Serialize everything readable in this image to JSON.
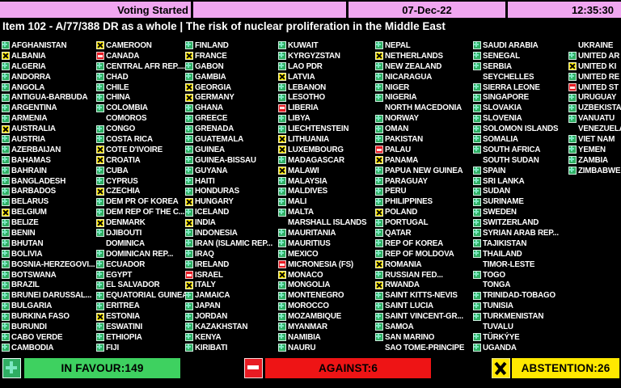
{
  "header": {
    "status": "Voting Started",
    "date": "07-Dec-22",
    "time": "12:35:30"
  },
  "title": "Item 102 - A/77/388 DR as a whole  | The risk of nuclear proliferation in the Middle East",
  "legend": {
    "favour": "IN FAVOUR:149",
    "against": "AGAINST:6",
    "abstention": "ABSTENTION:26"
  },
  "counts": {
    "in_favour": 149,
    "against": 6,
    "abstention": 26
  },
  "colors": {
    "favour_green": "#3ed160",
    "against_red": "#ee1415",
    "abstain_yellow": "#ffe800",
    "header_pink": "#f0a6f0"
  },
  "vote_symbols": {
    "+": "in-favour",
    "-": "against",
    "x": "abstain",
    "": "not-voting"
  },
  "columns": [
    [
      [
        "AFGHANISTAN",
        "+"
      ],
      [
        "ALBANIA",
        "x"
      ],
      [
        "ALGERIA",
        "+"
      ],
      [
        "ANDORRA",
        "+"
      ],
      [
        "ANGOLA",
        "+"
      ],
      [
        "ANTIGUA-BARBUDA",
        "+"
      ],
      [
        "ARGENTINA",
        "+"
      ],
      [
        "ARMENIA",
        "+"
      ],
      [
        "AUSTRALIA",
        "x"
      ],
      [
        "AUSTRIA",
        "+"
      ],
      [
        "AZERBAIJAN",
        "+"
      ],
      [
        "BAHAMAS",
        "+"
      ],
      [
        "BAHRAIN",
        "+"
      ],
      [
        "BANGLADESH",
        "+"
      ],
      [
        "BARBADOS",
        "+"
      ],
      [
        "BELARUS",
        "+"
      ],
      [
        "BELGIUM",
        "x"
      ],
      [
        "BELIZE",
        "+"
      ],
      [
        "BENIN",
        "+"
      ],
      [
        "BHUTAN",
        "+"
      ],
      [
        "BOLIVIA",
        "+"
      ],
      [
        "BOSNIA-HERZEGOVI...",
        "+"
      ],
      [
        "BOTSWANA",
        "+"
      ],
      [
        "BRAZIL",
        "+"
      ],
      [
        "BRUNEI DARUSSAL...",
        "+"
      ],
      [
        "BULGARIA",
        "+"
      ],
      [
        "BURKINA FASO",
        "+"
      ],
      [
        "BURUNDI",
        "+"
      ],
      [
        "CABO VERDE",
        "+"
      ],
      [
        "CAMBODIA",
        "+"
      ]
    ],
    [
      [
        "CAMEROON",
        "x"
      ],
      [
        "CANADA",
        "-"
      ],
      [
        "CENTRAL AFR REP....",
        "+"
      ],
      [
        "CHAD",
        "+"
      ],
      [
        "CHILE",
        "+"
      ],
      [
        "CHINA",
        "+"
      ],
      [
        "COLOMBIA",
        "+"
      ],
      [
        "COMOROS",
        ""
      ],
      [
        "CONGO",
        "+"
      ],
      [
        "COSTA RICA",
        "+"
      ],
      [
        "COTE D'IVOIRE",
        "x"
      ],
      [
        "CROATIA",
        "x"
      ],
      [
        "CUBA",
        "+"
      ],
      [
        "CYPRUS",
        "+"
      ],
      [
        "CZECHIA",
        "x"
      ],
      [
        "DEM PR OF KOREA",
        "+"
      ],
      [
        "DEM REP OF THE C...",
        "+"
      ],
      [
        "DENMARK",
        "x"
      ],
      [
        "DJIBOUTI",
        "+"
      ],
      [
        "DOMINICA",
        ""
      ],
      [
        "DOMINICAN REP...",
        "+"
      ],
      [
        "ECUADOR",
        "+"
      ],
      [
        "EGYPT",
        "+"
      ],
      [
        "EL SALVADOR",
        "+"
      ],
      [
        "EQUATORIAL GUINEA",
        "+"
      ],
      [
        "ERITREA",
        "+"
      ],
      [
        "ESTONIA",
        "x"
      ],
      [
        "ESWATINI",
        "+"
      ],
      [
        "ETHIOPIA",
        "+"
      ],
      [
        "FIJI",
        "+"
      ]
    ],
    [
      [
        "FINLAND",
        "+"
      ],
      [
        "FRANCE",
        "x"
      ],
      [
        "GABON",
        "+"
      ],
      [
        "GAMBIA",
        "+"
      ],
      [
        "GEORGIA",
        "x"
      ],
      [
        "GERMANY",
        "x"
      ],
      [
        "GHANA",
        "+"
      ],
      [
        "GREECE",
        "+"
      ],
      [
        "GRENADA",
        "+"
      ],
      [
        "GUATEMALA",
        "+"
      ],
      [
        "GUINEA",
        "+"
      ],
      [
        "GUINEA-BISSAU",
        "+"
      ],
      [
        "GUYANA",
        "+"
      ],
      [
        "HAITI",
        "+"
      ],
      [
        "HONDURAS",
        "+"
      ],
      [
        "HUNGARY",
        "x"
      ],
      [
        "ICELAND",
        "+"
      ],
      [
        "INDIA",
        "x"
      ],
      [
        "INDONESIA",
        "+"
      ],
      [
        "IRAN (ISLAMIC REP...",
        "+"
      ],
      [
        "IRAQ",
        "+"
      ],
      [
        "IRELAND",
        "+"
      ],
      [
        "ISRAEL",
        "-"
      ],
      [
        "ITALY",
        "x"
      ],
      [
        "JAMAICA",
        "+"
      ],
      [
        "JAPAN",
        "+"
      ],
      [
        "JORDAN",
        "+"
      ],
      [
        "KAZAKHSTAN",
        "+"
      ],
      [
        "KENYA",
        "+"
      ],
      [
        "KIRIBATI",
        "+"
      ]
    ],
    [
      [
        "KUWAIT",
        "+"
      ],
      [
        "KYRGYZSTAN",
        "+"
      ],
      [
        "LAO PDR",
        "+"
      ],
      [
        "LATVIA",
        "x"
      ],
      [
        "LEBANON",
        "+"
      ],
      [
        "LESOTHO",
        "+"
      ],
      [
        "LIBERIA",
        "-"
      ],
      [
        "LIBYA",
        "+"
      ],
      [
        "LIECHTENSTEIN",
        "+"
      ],
      [
        "LITHUANIA",
        "x"
      ],
      [
        "LUXEMBOURG",
        "x"
      ],
      [
        "MADAGASCAR",
        "+"
      ],
      [
        "MALAWI",
        "x"
      ],
      [
        "MALAYSIA",
        "+"
      ],
      [
        "MALDIVES",
        "+"
      ],
      [
        "MALI",
        "+"
      ],
      [
        "MALTA",
        "+"
      ],
      [
        "MARSHALL ISLANDS",
        ""
      ],
      [
        "MAURITANIA",
        "+"
      ],
      [
        "MAURITIUS",
        "+"
      ],
      [
        "MEXICO",
        "+"
      ],
      [
        "MICRONESIA (FS)",
        "-"
      ],
      [
        "MONACO",
        "x"
      ],
      [
        "MONGOLIA",
        "+"
      ],
      [
        "MONTENEGRO",
        "+"
      ],
      [
        "MOROCCO",
        "+"
      ],
      [
        "MOZAMBIQUE",
        "+"
      ],
      [
        "MYANMAR",
        "+"
      ],
      [
        "NAMIBIA",
        "+"
      ],
      [
        "NAURU",
        "+"
      ]
    ],
    [
      [
        "NEPAL",
        "+"
      ],
      [
        "NETHERLANDS",
        "x"
      ],
      [
        "NEW ZEALAND",
        "+"
      ],
      [
        "NICARAGUA",
        "+"
      ],
      [
        "NIGER",
        "+"
      ],
      [
        "NIGERIA",
        "+"
      ],
      [
        "NORTH MACEDONIA",
        ""
      ],
      [
        "NORWAY",
        "+"
      ],
      [
        "OMAN",
        "+"
      ],
      [
        "PAKISTAN",
        "+"
      ],
      [
        "PALAU",
        "-"
      ],
      [
        "PANAMA",
        "x"
      ],
      [
        "PAPUA NEW GUINEA",
        "+"
      ],
      [
        "PARAGUAY",
        "+"
      ],
      [
        "PERU",
        "+"
      ],
      [
        "PHILIPPINES",
        "+"
      ],
      [
        "POLAND",
        "x"
      ],
      [
        "PORTUGAL",
        "+"
      ],
      [
        "QATAR",
        "+"
      ],
      [
        "REP OF KOREA",
        "+"
      ],
      [
        "REP OF MOLDOVA",
        "+"
      ],
      [
        "ROMANIA",
        "x"
      ],
      [
        "RUSSIAN FED...",
        "+"
      ],
      [
        "RWANDA",
        "x"
      ],
      [
        "SAINT KITTS-NEVIS",
        "+"
      ],
      [
        "SAINT LUCIA",
        "+"
      ],
      [
        "SAINT VINCENT-GR...",
        "+"
      ],
      [
        "SAMOA",
        "+"
      ],
      [
        "SAN MARINO",
        "+"
      ],
      [
        "SAO TOME-PRINCIPE",
        ""
      ]
    ],
    [
      [
        "SAUDI ARABIA",
        "+"
      ],
      [
        "SENEGAL",
        "+"
      ],
      [
        "SERBIA",
        "+"
      ],
      [
        "SEYCHELLES",
        ""
      ],
      [
        "SIERRA LEONE",
        "+"
      ],
      [
        "SINGAPORE",
        "+"
      ],
      [
        "SLOVAKIA",
        "+"
      ],
      [
        "SLOVENIA",
        "+"
      ],
      [
        "SOLOMON ISLANDS",
        "+"
      ],
      [
        "SOMALIA",
        "+"
      ],
      [
        "SOUTH AFRICA",
        "+"
      ],
      [
        "SOUTH SUDAN",
        ""
      ],
      [
        "SPAIN",
        "+"
      ],
      [
        "SRI LANKA",
        "+"
      ],
      [
        "SUDAN",
        "+"
      ],
      [
        "SURINAME",
        "+"
      ],
      [
        "SWEDEN",
        "+"
      ],
      [
        "SWITZERLAND",
        "+"
      ],
      [
        "SYRIAN ARAB REP...",
        "+"
      ],
      [
        "TAJIKISTAN",
        "+"
      ],
      [
        "THAILAND",
        "+"
      ],
      [
        "TIMOR-LESTE",
        ""
      ],
      [
        "TOGO",
        "+"
      ],
      [
        "TONGA",
        ""
      ],
      [
        "TRINIDAD-TOBAGO",
        "+"
      ],
      [
        "TUNISIA",
        "+"
      ],
      [
        "TURKMENISTAN",
        "+"
      ],
      [
        "TUVALU",
        ""
      ],
      [
        "TÜRKÝYE",
        "+"
      ],
      [
        "UGANDA",
        "+"
      ]
    ],
    [
      [
        "UKRAINE",
        ""
      ],
      [
        "UNITED AR",
        "+"
      ],
      [
        "UNITED KI",
        "x"
      ],
      [
        "UNITED RE",
        "+"
      ],
      [
        "UNITED ST",
        "-"
      ],
      [
        "URUGUAY",
        "+"
      ],
      [
        "UZBEKISTA",
        "+"
      ],
      [
        "VANUATU",
        "+"
      ],
      [
        "VENEZUELA",
        ""
      ],
      [
        "VIET NAM",
        "+"
      ],
      [
        "YEMEN",
        "+"
      ],
      [
        "ZAMBIA",
        "+"
      ],
      [
        "ZIMBABWE",
        "+"
      ]
    ]
  ]
}
